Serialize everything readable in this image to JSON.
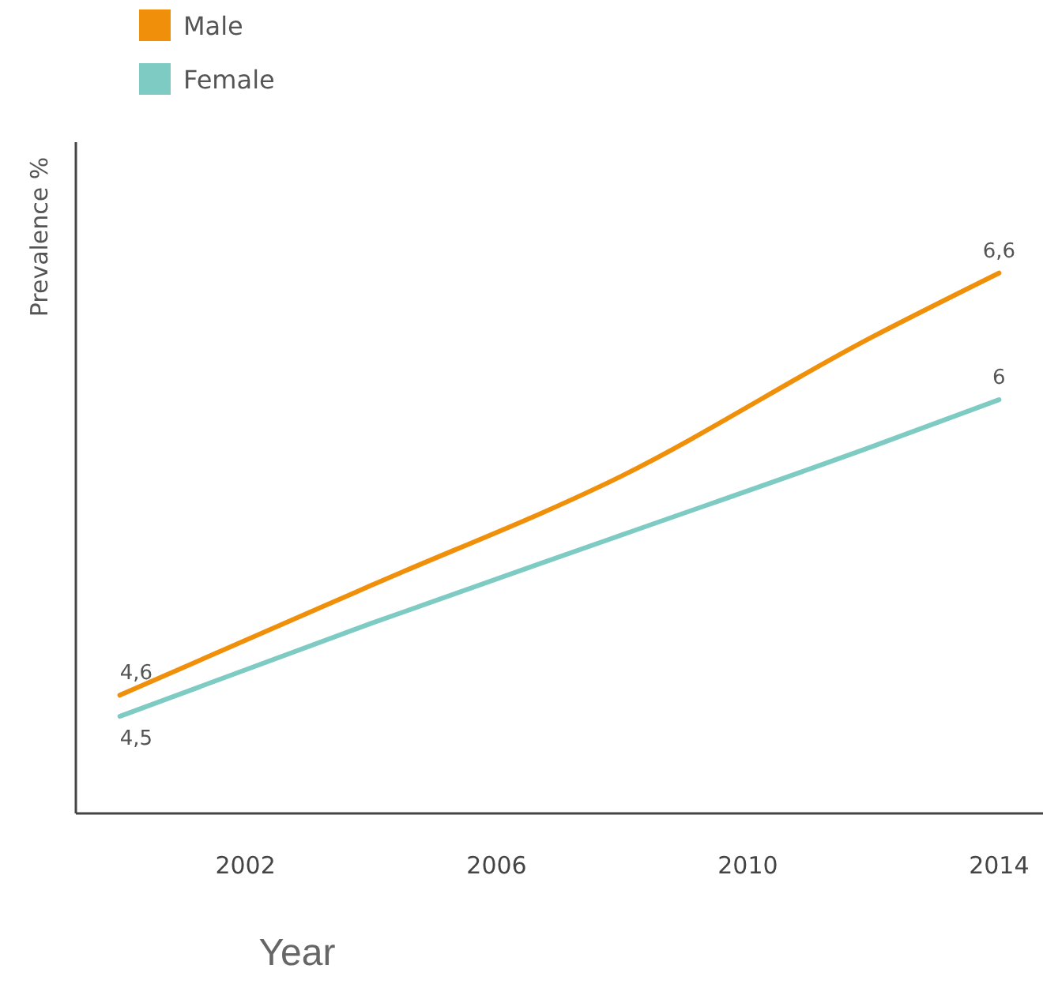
{
  "chart_data": {
    "type": "line",
    "xlabel": "Year",
    "ylabel": "Prevalence %",
    "x": [
      2000,
      2004,
      2008,
      2012,
      2014
    ],
    "series": [
      {
        "name": "Male",
        "color": "#f0900a",
        "values": [
          4.6,
          5.12,
          5.64,
          6.3,
          6.6
        ],
        "value_labels": [
          "4,6",
          null,
          null,
          null,
          "6,6"
        ]
      },
      {
        "name": "Female",
        "color": "#7ecbc4",
        "values": [
          4.5,
          4.94,
          5.36,
          5.78,
          6
        ],
        "value_labels": [
          "4,5",
          null,
          null,
          null,
          "6"
        ]
      }
    ],
    "xlim": [
      1999.3,
      2014.7
    ],
    "xticks": [
      2002,
      2006,
      2010,
      2014
    ],
    "ylim": [
      4.04,
      7.22
    ],
    "tick_labels": "x",
    "legend": "top left",
    "grid": false,
    "marker": "none",
    "line_style": "solid"
  }
}
